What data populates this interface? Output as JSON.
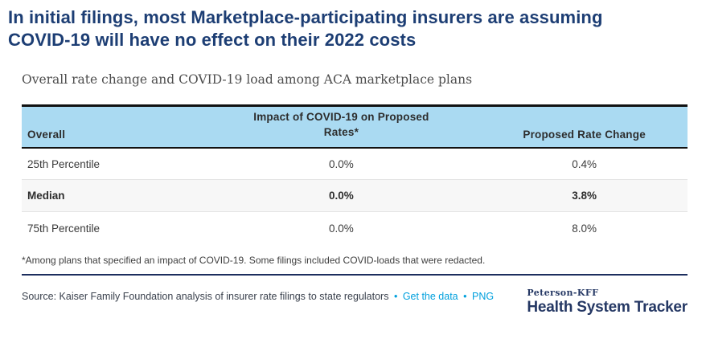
{
  "title": "In initial filings, most Marketplace-participating insurers are assuming COVID-19 will have no effect on their 2022 costs",
  "subtitle": "Overall rate change and COVID-19 load among ACA marketplace plans",
  "table": {
    "columns": [
      "Overall",
      "Impact of COVID-19 on Proposed Rates*",
      "Proposed Rate Change"
    ],
    "rows": [
      {
        "label": "25th Percentile",
        "covid_impact": "0.0%",
        "rate_change": "0.4%"
      },
      {
        "label": "Median",
        "covid_impact": "0.0%",
        "rate_change": "3.8%"
      },
      {
        "label": "75th Percentile",
        "covid_impact": "0.0%",
        "rate_change": "8.0%"
      }
    ]
  },
  "footnote": "*Among plans that specified an impact of COVID-19. Some filings included COVID-loads that were redacted.",
  "source": {
    "text": "Source: Kaiser Family Foundation analysis of insurer rate filings to state regulators",
    "separator": "•",
    "link_get_data": "Get the data",
    "link_png": "PNG"
  },
  "logo": {
    "brand": "Peterson-KFF",
    "name": "Health System Tracker"
  },
  "colors": {
    "title_navy": "#1d3e74",
    "header_blue": "#aadaf2",
    "highlight_gray": "#f7f7f7",
    "link_blue": "#00a0dd",
    "divider_navy": "#1c2e5e",
    "logo_navy": "#253864"
  },
  "chart_data": {
    "type": "table",
    "title": "Overall rate change and COVID-19 load among ACA marketplace plans",
    "columns": [
      "Overall",
      "Impact of COVID-19 on Proposed Rates*",
      "Proposed Rate Change"
    ],
    "rows": [
      [
        "25th Percentile",
        "0.0%",
        "0.4%"
      ],
      [
        "Median",
        "0.0%",
        "3.8%"
      ],
      [
        "75th Percentile",
        "0.0%",
        "8.0%"
      ]
    ],
    "covid_impact_values_pct": [
      0.0,
      0.0,
      0.0
    ],
    "proposed_rate_change_values_pct": [
      0.4,
      3.8,
      8.0
    ],
    "highlighted_row": "Median"
  }
}
